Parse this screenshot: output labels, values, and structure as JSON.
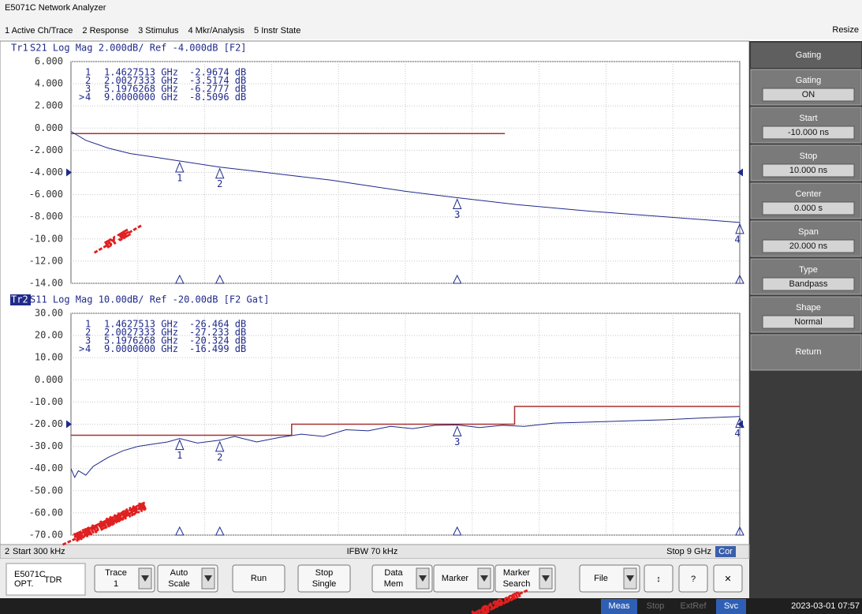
{
  "app_title": "E5071C Network Analyzer",
  "menu": [
    "1 Active Ch/Trace",
    "2 Response",
    "3 Stimulus",
    "4 Mkr/Analysis",
    "5 Instr State"
  ],
  "resize": "Resize",
  "panels": [
    {
      "tag": "Tr1",
      "active": false,
      "header": " S21 Log Mag 2.000dB/ Ref -4.000dB [F2]",
      "ref": -4,
      "ylim": [
        -14,
        6
      ],
      "yticks": [
        {
          "value": 6,
          "label": "6.000"
        },
        {
          "value": 4,
          "label": "4.000"
        },
        {
          "value": 2,
          "label": "2.000"
        },
        {
          "value": 0,
          "label": "0.000"
        },
        {
          "value": -2,
          "label": "-2.000"
        },
        {
          "value": -4,
          "label": "-4.000"
        },
        {
          "value": -6,
          "label": "-6.000"
        },
        {
          "value": -8,
          "label": "-8.000"
        },
        {
          "value": -10,
          "label": "-10.00"
        },
        {
          "value": -12,
          "label": "-12.00"
        },
        {
          "value": -14,
          "label": "-14.00"
        }
      ],
      "xlim": [
        0.0003,
        9
      ],
      "trace": {
        "color": "#1f2a8a",
        "x": [
          0.0003,
          0.2,
          0.5,
          0.8,
          1.1,
          1.4627513,
          2.0027333,
          2.5,
          3,
          3.5,
          4,
          4.5,
          5.1976268,
          6,
          7,
          8,
          9
        ],
        "values": [
          -0.3,
          -1.1,
          -1.8,
          -2.3,
          -2.6,
          -2.9674,
          -3.5174,
          -3.9,
          -4.3,
          -4.7,
          -5.2,
          -5.7,
          -6.2777,
          -6.9,
          -7.5,
          -8.0,
          -8.5096
        ]
      },
      "limit": {
        "color": "#a83232",
        "x": [
          0.0003,
          5.84
        ],
        "values": [
          -0.5,
          -0.5
        ]
      },
      "markers": [
        {
          "prefix": "",
          "id": "1",
          "freq": {
            "value": 1.4627513,
            "label": "1.4627513 GHz"
          },
          "val": {
            "value": -2.9674,
            "label": "-2.9674 dB"
          }
        },
        {
          "prefix": "",
          "id": "2",
          "freq": {
            "value": 2.0027333,
            "label": "2.0027333 GHz"
          },
          "val": {
            "value": -3.5174,
            "label": "-3.5174 dB"
          }
        },
        {
          "prefix": "",
          "id": "3",
          "freq": {
            "value": 5.1976268,
            "label": "5.1976268 GHz"
          },
          "val": {
            "value": -6.2777,
            "label": "-6.2777 dB"
          }
        },
        {
          "prefix": ">",
          "id": "4",
          "freq": {
            "value": 9,
            "label": "9.0000000 GHz"
          },
          "val": {
            "value": -8.5096,
            "label": "-8.5096 dB"
          }
        }
      ]
    },
    {
      "tag": "Tr2",
      "active": true,
      "header": " S11 Log Mag 10.00dB/ Ref -20.00dB [F2 Gat]",
      "ref": -20,
      "ylim": [
        -70,
        30
      ],
      "yticks": [
        {
          "value": 30,
          "label": "30.00"
        },
        {
          "value": 20,
          "label": "20.00"
        },
        {
          "value": 10,
          "label": "10.00"
        },
        {
          "value": 0,
          "label": "0.000"
        },
        {
          "value": -10,
          "label": "-10.00"
        },
        {
          "value": -20,
          "label": "-20.00"
        },
        {
          "value": -30,
          "label": "-30.00"
        },
        {
          "value": -40,
          "label": "-40.00"
        },
        {
          "value": -50,
          "label": "-50.00"
        },
        {
          "value": -60,
          "label": "-60.00"
        },
        {
          "value": -70,
          "label": "-70.00"
        }
      ],
      "xlim": [
        0.0003,
        9
      ],
      "trace": {
        "color": "#1f2a8a",
        "x": [
          0.0003,
          0.05,
          0.1,
          0.2,
          0.3,
          0.5,
          0.7,
          0.9,
          1.1,
          1.3,
          1.4627513,
          1.7,
          2.0027333,
          2.2,
          2.5,
          2.8,
          3.1,
          3.4,
          3.7,
          4.0,
          4.3,
          4.6,
          4.9,
          5.1976268,
          5.5,
          5.8,
          6.1,
          6.5,
          7.0,
          7.5,
          8.0,
          8.5,
          9
        ],
        "values": [
          -40,
          -44,
          -41,
          -43,
          -39,
          -35,
          -32,
          -30,
          -29,
          -28,
          -26.464,
          -28.5,
          -27.233,
          -25.5,
          -28,
          -26,
          -24.5,
          -25.5,
          -22.5,
          -23,
          -21,
          -22,
          -20.5,
          -20.324,
          -21.5,
          -20.5,
          -21,
          -19.5,
          -19,
          -18.5,
          -18,
          -17.2,
          -16.499
        ]
      },
      "limit": {
        "color": "#a83232",
        "x": [
          0.0003,
          2.97,
          2.97,
          5.97,
          5.97,
          9
        ],
        "values": [
          -25,
          -25,
          -20,
          -20,
          -12,
          -12
        ]
      },
      "markers": [
        {
          "prefix": "",
          "id": "1",
          "freq": {
            "value": 1.4627513,
            "label": "1.4627513 GHz"
          },
          "val": {
            "value": -26.464,
            "label": "-26.464 dB"
          }
        },
        {
          "prefix": "",
          "id": "2",
          "freq": {
            "value": 2.0027333,
            "label": "2.0027333 GHz"
          },
          "val": {
            "value": -27.233,
            "label": "-27.233 dB"
          }
        },
        {
          "prefix": "",
          "id": "3",
          "freq": {
            "value": 5.1976268,
            "label": "5.1976268 GHz"
          },
          "val": {
            "value": -20.324,
            "label": "-20.324 dB"
          }
        },
        {
          "prefix": ">",
          "id": "4",
          "freq": {
            "value": 9,
            "label": "9.0000000 GHz"
          },
          "val": {
            "value": -16.499,
            "label": "-16.499 dB"
          }
        }
      ]
    }
  ],
  "status": {
    "channel": "2",
    "start": "Start 300 kHz",
    "ifbw": "IFBW 70 kHz",
    "stop": "Stop 9 GHz",
    "cor": "Cor"
  },
  "softkeys": {
    "title": "Gating",
    "keys": [
      {
        "label": "Gating",
        "value": "ON"
      },
      {
        "label": "Start",
        "value": "-10.000 ns"
      },
      {
        "label": "Stop",
        "value": "10.000 ns"
      },
      {
        "label": "Center",
        "value": "0.000 s"
      },
      {
        "label": "Span",
        "value": "20.000 ns"
      },
      {
        "label": "Type",
        "value": "Bandpass"
      },
      {
        "label": "Shape",
        "value": "Normal"
      },
      {
        "label": "Return",
        "value": null
      }
    ]
  },
  "toolbar": {
    "logo_model": "E5071C",
    "logo_opt": "OPT.",
    "logo_name": "TDR",
    "buttons": [
      {
        "lines": [
          "Trace",
          "1"
        ],
        "dropdown": true
      },
      {
        "lines": [
          "Auto",
          "Scale"
        ],
        "dropdown": true
      },
      {
        "lines": [
          "Run"
        ],
        "dropdown": false
      },
      {
        "lines": [
          "Stop",
          "Single"
        ],
        "dropdown": false
      },
      {
        "lines": [
          "Data",
          "Mem"
        ],
        "dropdown": true
      },
      {
        "lines": [
          "Marker"
        ],
        "dropdown": true
      },
      {
        "lines": [
          "Marker",
          "Search"
        ],
        "dropdown": true
      },
      {
        "lines": [
          "File"
        ],
        "dropdown": true
      }
    ],
    "icons": [
      "↕",
      "?",
      "✕"
    ]
  },
  "footer": {
    "items": [
      "Meas",
      "Stop",
      "ExtRef",
      "Svc"
    ],
    "datetime": "2023-03-01 07:57"
  },
  "watermark": [
    "- - -BY JIE- - -",
    "- - -深圳市吉赫兹科技有",
    "bz@139.com- -"
  ]
}
